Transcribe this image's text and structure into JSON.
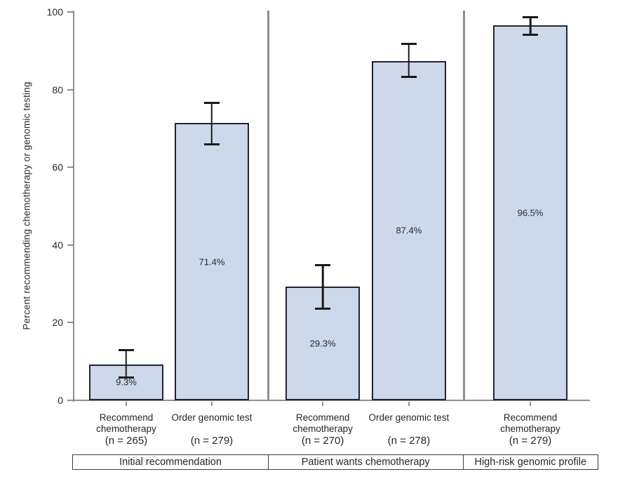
{
  "chart_data": {
    "type": "bar",
    "title": "",
    "ylabel": "Percent recommending chemotherapy or genomic testing",
    "xlabel": "",
    "ylim": [
      0,
      100
    ],
    "yticks": [
      0,
      20,
      40,
      60,
      80,
      100
    ],
    "grid": false,
    "legend": "none",
    "colors": {
      "bar_fill": "#cdd8ea",
      "bar_border": "#232332",
      "axis": "#8f8f8f",
      "error_bar": "#1a1a1a",
      "text": "#262626"
    },
    "panels": [
      {
        "label": "Initial recommendation",
        "bars": [
          {
            "category": "Recommend chemotherapy",
            "n_label": "(n = 265)",
            "value": 9.3,
            "value_label": "9.3%",
            "err_low": 5.8,
            "err_high": 12.9
          },
          {
            "category": "Order genomic test",
            "n_label": "(n = 279)",
            "value": 71.4,
            "value_label": "71.4%",
            "err_low": 65.9,
            "err_high": 76.6
          }
        ]
      },
      {
        "label": "Patient wants chemotherapy",
        "bars": [
          {
            "category": "Recommend chemotherapy",
            "n_label": "(n = 270)",
            "value": 29.3,
            "value_label": "29.3%",
            "err_low": 23.6,
            "err_high": 34.8
          },
          {
            "category": "Order genomic test",
            "n_label": "(n = 278)",
            "value": 87.4,
            "value_label": "87.4%",
            "err_low": 83.2,
            "err_high": 91.7
          }
        ]
      },
      {
        "label": "High-risk genomic profile",
        "bars": [
          {
            "category": "Recommend chemotherapy",
            "n_label": "(n = 279)",
            "value": 96.5,
            "value_label": "96.5%",
            "err_low": 94.2,
            "err_high": 98.6
          }
        ]
      }
    ]
  }
}
